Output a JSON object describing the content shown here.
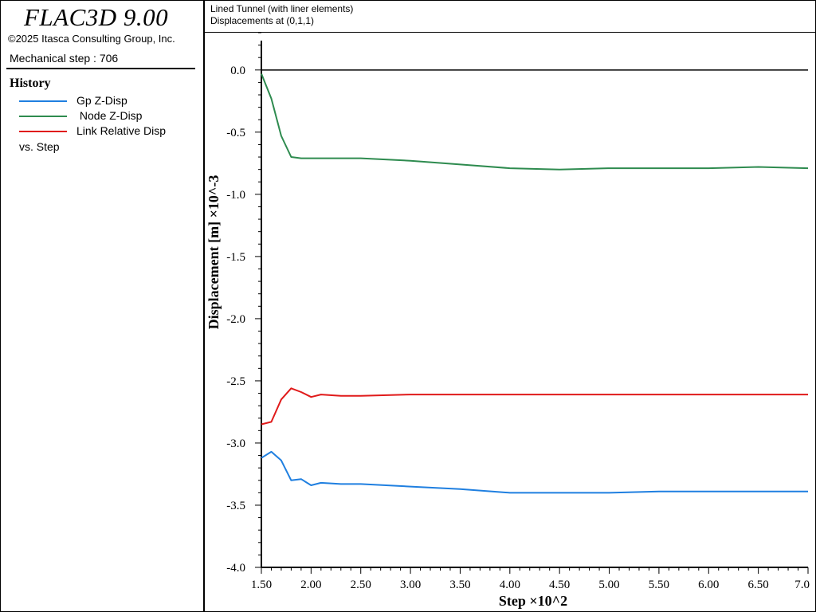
{
  "app": {
    "title": "FLAC3D 9.00",
    "copyright": "©2025 Itasca Consulting Group, Inc.",
    "mechanical_step": "Mechanical step : 706"
  },
  "history": {
    "heading": "History",
    "items": [
      {
        "label": "Gp Z-Disp",
        "color": "#1f7fe0"
      },
      {
        "label": " Node Z-Disp",
        "color": "#2e8b4f"
      },
      {
        "label": "Link Relative Disp",
        "color": "#e01a1a"
      }
    ],
    "vs_label": "vs. Step"
  },
  "plot": {
    "title_line1": "Lined Tunnel (with liner elements)",
    "title_line2": "Displacements at (0,1,1)"
  },
  "chart_data": {
    "type": "line",
    "xlabel": "Step ×10^2",
    "ylabel": "Displacement [m] ×10^-3",
    "xlim": [
      1.5,
      7.0
    ],
    "ylim": [
      -4.0,
      0.3
    ],
    "x_ticks": [
      "1.50",
      "2.00",
      "2.50",
      "3.00",
      "3.50",
      "4.00",
      "4.50",
      "5.00",
      "5.50",
      "6.00",
      "6.50",
      "7.0"
    ],
    "y_ticks": [
      "0.0",
      "-0.5",
      "-1.0",
      "-1.5",
      "-2.0",
      "-2.5",
      "-3.0",
      "-3.5",
      "-4.0"
    ],
    "zero_line": true,
    "series": [
      {
        "name": "Gp Z-Disp",
        "color": "#1f7fe0",
        "x": [
          1.5,
          1.6,
          1.7,
          1.8,
          1.9,
          2.0,
          2.1,
          2.3,
          2.5,
          3.0,
          3.5,
          4.0,
          4.2,
          4.5,
          5.0,
          5.5,
          6.0,
          6.5,
          7.0
        ],
        "y": [
          -3.12,
          -3.07,
          -3.14,
          -3.3,
          -3.29,
          -3.34,
          -3.32,
          -3.33,
          -3.33,
          -3.35,
          -3.37,
          -3.4,
          -3.4,
          -3.4,
          -3.4,
          -3.39,
          -3.39,
          -3.39,
          -3.39
        ]
      },
      {
        "name": "Node Z-Disp",
        "color": "#2e8b4f",
        "x": [
          1.5,
          1.6,
          1.7,
          1.8,
          1.9,
          2.0,
          2.5,
          3.0,
          3.5,
          4.0,
          4.5,
          5.0,
          5.5,
          6.0,
          6.5,
          7.0
        ],
        "y": [
          -0.03,
          -0.23,
          -0.53,
          -0.7,
          -0.71,
          -0.71,
          -0.71,
          -0.73,
          -0.76,
          -0.79,
          -0.8,
          -0.79,
          -0.79,
          -0.79,
          -0.78,
          -0.79
        ]
      },
      {
        "name": "Link Relative Disp",
        "color": "#e01a1a",
        "x": [
          1.5,
          1.6,
          1.7,
          1.8,
          1.9,
          2.0,
          2.1,
          2.3,
          2.5,
          3.0,
          4.0,
          5.0,
          6.0,
          7.0
        ],
        "y": [
          -2.85,
          -2.83,
          -2.65,
          -2.56,
          -2.59,
          -2.63,
          -2.61,
          -2.62,
          -2.62,
          -2.61,
          -2.61,
          -2.61,
          -2.61,
          -2.61
        ]
      }
    ]
  }
}
